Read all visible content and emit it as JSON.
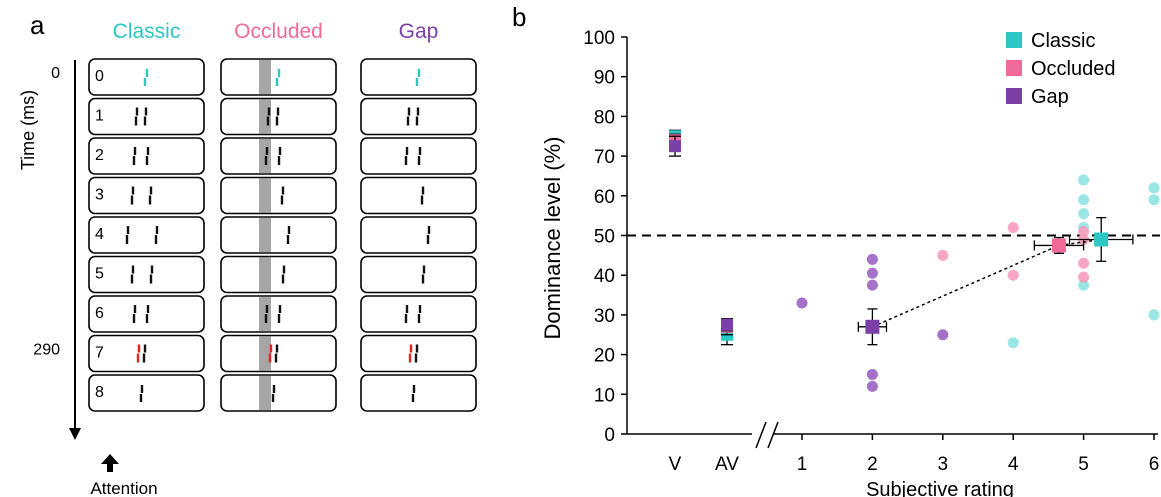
{
  "panel_a": {
    "label": "a",
    "columns": [
      {
        "title": "Classic",
        "color": "#2bc7c4",
        "occluder": false
      },
      {
        "title": "Occluded",
        "color": "#f06a9a",
        "occluder": true
      },
      {
        "title": "Gap",
        "color": "#7b3fa8",
        "occluder": false
      }
    ],
    "time_label": "Time (ms)",
    "time_ticks": [
      {
        "frame": 0,
        "text": "0"
      },
      {
        "frame": 7,
        "text": "290"
      }
    ],
    "frames": [
      "0",
      "1",
      "2",
      "3",
      "4",
      "5",
      "6",
      "7",
      "8"
    ],
    "attention_label": "Attention",
    "colors": {
      "first_frame": "#2bc7c4",
      "highlight": "#e8201f",
      "bar": "#111111",
      "occluder": "#a6a6a6"
    }
  },
  "chart_data": {
    "type": "scatter",
    "panel_label": "b",
    "ylabel": "Dominance level (%)",
    "xlabel": "Subjective rating",
    "ylim": [
      0,
      100
    ],
    "yticks": [
      "0",
      "10",
      "20",
      "30",
      "40",
      "50",
      "60",
      "70",
      "80",
      "90",
      "100"
    ],
    "xticks": [
      "V",
      "AV",
      "1",
      "2",
      "3",
      "4",
      "5",
      "6"
    ],
    "reference_line": 50,
    "legend": [
      {
        "name": "Classic",
        "color": "#2bc7c4"
      },
      {
        "name": "Occluded",
        "color": "#f06a9a"
      },
      {
        "name": "Gap",
        "color": "#7b3fa8"
      }
    ],
    "condition_means": [
      {
        "x": "V",
        "series": "Classic",
        "y": 75,
        "err": 1.5
      },
      {
        "x": "V",
        "series": "Occluded",
        "y": 74,
        "err": 1.5
      },
      {
        "x": "V",
        "series": "Gap",
        "y": 72.5,
        "err": 2.5
      },
      {
        "x": "AV",
        "series": "Classic",
        "y": 25,
        "err": 2.5
      },
      {
        "x": "AV",
        "series": "Occluded",
        "y": 27,
        "err": 2
      },
      {
        "x": "AV",
        "series": "Gap",
        "y": 27.5,
        "err": 1.5
      }
    ],
    "points": [
      {
        "series": "Gap",
        "x": 1,
        "y": 33
      },
      {
        "series": "Gap",
        "x": 2,
        "y": 44
      },
      {
        "series": "Gap",
        "x": 2,
        "y": 40.5
      },
      {
        "series": "Gap",
        "x": 2,
        "y": 37.5
      },
      {
        "series": "Gap",
        "x": 2,
        "y": 15
      },
      {
        "series": "Gap",
        "x": 2,
        "y": 12
      },
      {
        "series": "Gap",
        "x": 3,
        "y": 25
      },
      {
        "series": "Occluded",
        "x": 3,
        "y": 45
      },
      {
        "series": "Occluded",
        "x": 4,
        "y": 52
      },
      {
        "series": "Occluded",
        "x": 4,
        "y": 40
      },
      {
        "series": "Classic",
        "x": 4,
        "y": 23
      },
      {
        "series": "Classic",
        "x": 5,
        "y": 64
      },
      {
        "series": "Classic",
        "x": 5,
        "y": 59
      },
      {
        "series": "Classic",
        "x": 5,
        "y": 55.5
      },
      {
        "series": "Classic",
        "x": 5,
        "y": 52
      },
      {
        "series": "Classic",
        "x": 5,
        "y": 37.5
      },
      {
        "series": "Occluded",
        "x": 5,
        "y": 51
      },
      {
        "series": "Occluded",
        "x": 5,
        "y": 49
      },
      {
        "series": "Occluded",
        "x": 5,
        "y": 43
      },
      {
        "series": "Occluded",
        "x": 5,
        "y": 39.5
      },
      {
        "series": "Classic",
        "x": 6,
        "y": 62
      },
      {
        "series": "Classic",
        "x": 6,
        "y": 30
      },
      {
        "series": "Classic",
        "x": 6,
        "y": 59
      }
    ],
    "rating_means": [
      {
        "series": "Gap",
        "x": 2,
        "y": 27,
        "xerr": 0.2,
        "yerr": 4.5
      },
      {
        "series": "Occluded",
        "x": 4.65,
        "y": 47.5,
        "xerr": 0.35,
        "yerr": 2
      },
      {
        "series": "Classic",
        "x": 5.25,
        "y": 49,
        "xerr": 0.45,
        "yerr": 5.5
      }
    ],
    "trend_line": [
      "Gap",
      "Occluded",
      "Classic"
    ]
  }
}
